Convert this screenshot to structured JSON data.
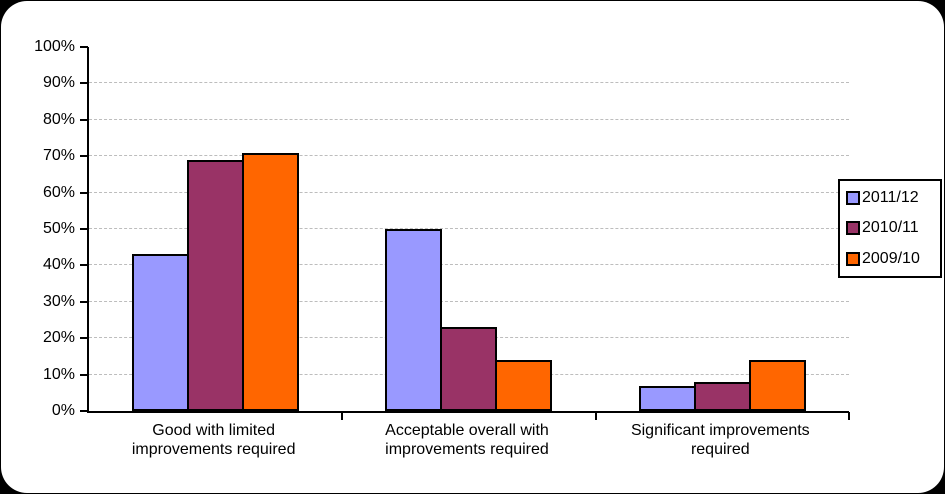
{
  "chart_data": {
    "type": "bar",
    "title": "",
    "categories": [
      "Good with limited\nimprovements required",
      "Acceptable overall with\nimprovements required",
      "Significant improvements\nrequired"
    ],
    "series": [
      {
        "name": "2011/12",
        "color": "#9999FF",
        "values": [
          43,
          50,
          7
        ]
      },
      {
        "name": "2010/11",
        "color": "#993366",
        "values": [
          69,
          23,
          8
        ]
      },
      {
        "name": "2009/10",
        "color": "#FF6600",
        "values": [
          71,
          14,
          14
        ]
      }
    ],
    "y_axis": {
      "min": 0,
      "max": 100,
      "step": 10,
      "labels": [
        "0%",
        "10%",
        "20%",
        "30%",
        "40%",
        "50%",
        "60%",
        "70%",
        "80%",
        "90%",
        "100%"
      ]
    },
    "xlabel": "",
    "ylabel": "",
    "legend_position": "right",
    "grid": "horizontal-dashed",
    "style": {
      "bar_border_color": "#000000",
      "gridline_color": "#bdbdbd",
      "axis_color": "#000000",
      "panel_background": "#ffffff",
      "outer_background": "#000000"
    }
  }
}
